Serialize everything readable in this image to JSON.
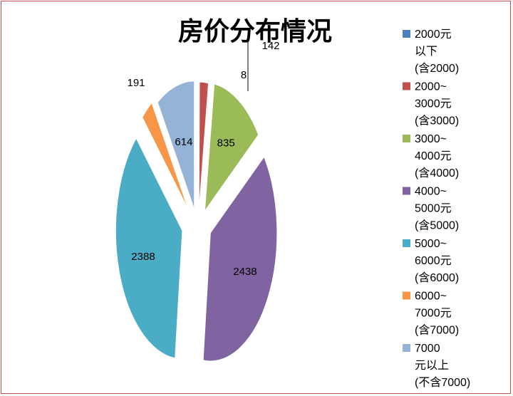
{
  "chart_data": {
    "type": "pie",
    "title": "房价分布情况",
    "categories": [
      "2000元以下(含2000)",
      "2000~3000元(含3000)",
      "3000~4000元(含4000)",
      "4000~5000元(含5000)",
      "5000~6000元(含6000)",
      "6000~7000元(含7000)",
      "7000元以上(不含7000)"
    ],
    "values": [
      8,
      142,
      835,
      2438,
      2388,
      191,
      614
    ],
    "colors": [
      "#4f81bd",
      "#c0504d",
      "#9bbb59",
      "#8064a2",
      "#4bacc6",
      "#f79646",
      "#95b3d7"
    ],
    "legend_lines": [
      [
        "2000元",
        "以下",
        "(含2000)"
      ],
      [
        "2000~",
        "3000元",
        "(含3000)"
      ],
      [
        "3000~",
        "4000元",
        "(含4000)"
      ],
      [
        "4000~",
        "5000元",
        "(含5000)"
      ],
      [
        "5000~",
        "6000元",
        "(含6000)"
      ],
      [
        "6000~",
        "7000元",
        "(含7000)"
      ],
      [
        "7000",
        "元以上",
        "(不含7000)"
      ]
    ],
    "legend_position": "right",
    "exploded": true
  }
}
